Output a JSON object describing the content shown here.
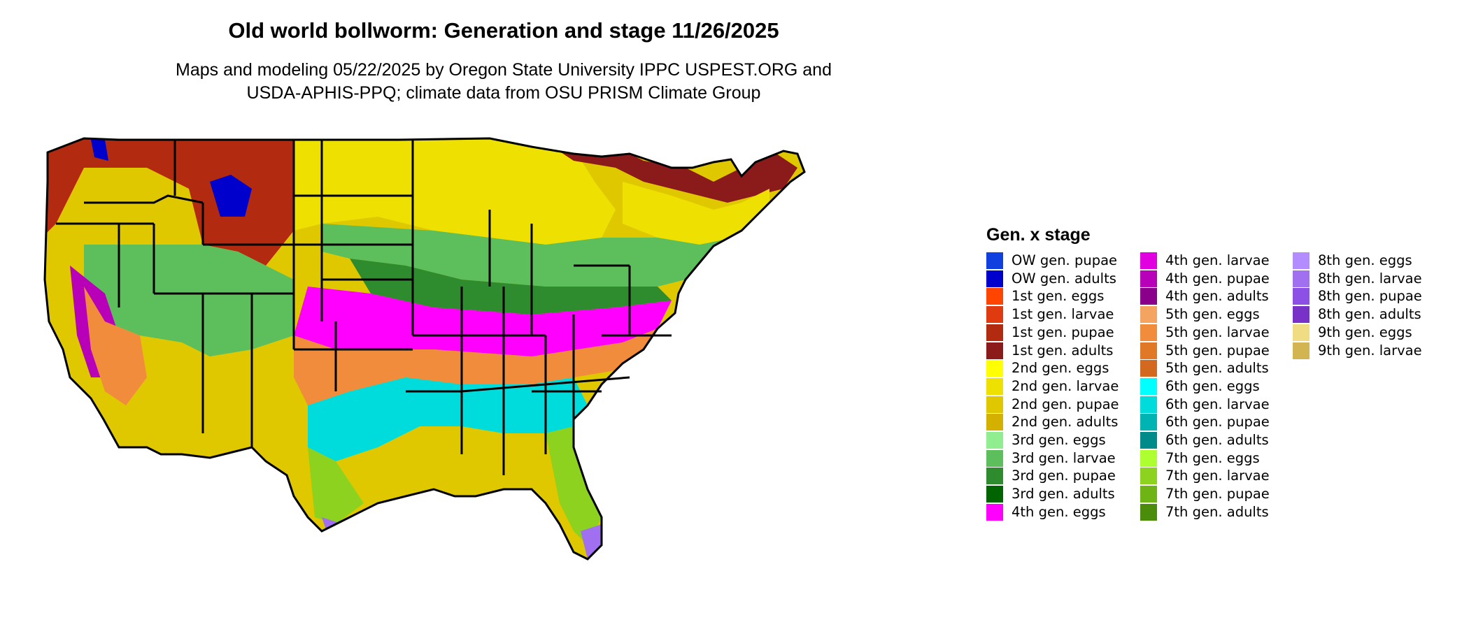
{
  "title": "Old world bollworm: Generation and stage 11/26/2025",
  "subtitle_line1": "Maps and modeling 05/22/2025 by Oregon State University IPPC USPEST.ORG and",
  "subtitle_line2": "USDA-APHIS-PPQ; climate data from OSU PRISM Climate Group",
  "legend": {
    "title": "Gen. x stage",
    "columns": [
      [
        {
          "label": "OW gen. pupae",
          "color": "#1040e0"
        },
        {
          "label": "OW gen. adults",
          "color": "#0000cd"
        },
        {
          "label": "1st gen. eggs",
          "color": "#ff4500"
        },
        {
          "label": "1st gen. larvae",
          "color": "#e03a10"
        },
        {
          "label": "1st gen. pupae",
          "color": "#b22a10"
        },
        {
          "label": "1st gen. adults",
          "color": "#8b1a1a"
        },
        {
          "label": "2nd gen. eggs",
          "color": "#ffff00"
        },
        {
          "label": "2nd gen. larvae",
          "color": "#eee000"
        },
        {
          "label": "2nd gen. pupae",
          "color": "#e0c800"
        },
        {
          "label": "2nd gen. adults",
          "color": "#d4b000"
        },
        {
          "label": "3rd gen. eggs",
          "color": "#90ee90"
        },
        {
          "label": "3rd gen. larvae",
          "color": "#5cbf5c"
        },
        {
          "label": "3rd gen. pupae",
          "color": "#2e8b2e"
        },
        {
          "label": "3rd gen. adults",
          "color": "#006400"
        },
        {
          "label": "4th gen. eggs",
          "color": "#ff00ff"
        }
      ],
      [
        {
          "label": "4th gen. larvae",
          "color": "#e000e0"
        },
        {
          "label": "4th gen. pupae",
          "color": "#b800b8"
        },
        {
          "label": "4th gen. adults",
          "color": "#8b008b"
        },
        {
          "label": "5th gen. eggs",
          "color": "#f4a460"
        },
        {
          "label": "5th gen. larvae",
          "color": "#f08c3c"
        },
        {
          "label": "5th gen. pupae",
          "color": "#e07828"
        },
        {
          "label": "5th gen. adults",
          "color": "#d2691e"
        },
        {
          "label": "6th gen. eggs",
          "color": "#00ffff"
        },
        {
          "label": "6th gen. larvae",
          "color": "#00dcdc"
        },
        {
          "label": "6th gen. pupae",
          "color": "#00b4b4"
        },
        {
          "label": "6th gen. adults",
          "color": "#008b8b"
        },
        {
          "label": "7th gen. eggs",
          "color": "#adff2f"
        },
        {
          "label": "7th gen. larvae",
          "color": "#8cd21e"
        },
        {
          "label": "7th gen. pupae",
          "color": "#6eb414"
        },
        {
          "label": "7th gen. adults",
          "color": "#4b8c0a"
        }
      ],
      [
        {
          "label": "8th gen. eggs",
          "color": "#b38cff"
        },
        {
          "label": "8th gen. larvae",
          "color": "#a070f0"
        },
        {
          "label": "8th gen. pupae",
          "color": "#8c50e6"
        },
        {
          "label": "8th gen. adults",
          "color": "#7832c8"
        },
        {
          "label": "9th gen. eggs",
          "color": "#f0dc82"
        },
        {
          "label": "9th gen. larvae",
          "color": "#d2b450"
        }
      ]
    ]
  }
}
